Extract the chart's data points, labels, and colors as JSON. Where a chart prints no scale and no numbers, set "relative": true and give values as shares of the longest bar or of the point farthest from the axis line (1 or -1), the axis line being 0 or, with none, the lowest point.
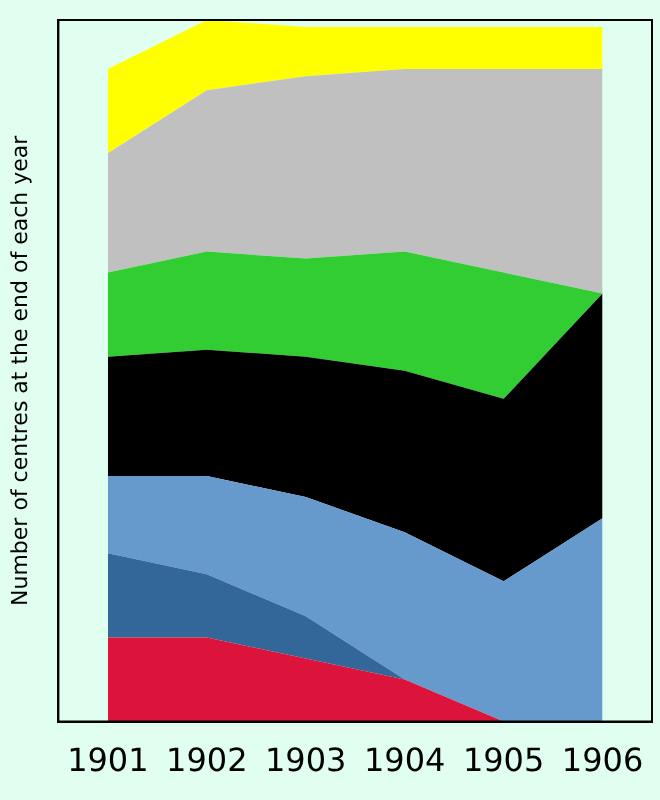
{
  "chart_data": {
    "type": "area",
    "stacked": true,
    "relative": true,
    "ylabel": "Number of centres at the end of each year",
    "categories": [
      "1901",
      "1902",
      "1903",
      "1904",
      "1905",
      "1906"
    ],
    "grid": false,
    "legend": false,
    "series": [
      {
        "color": "#dc143c",
        "values": [
          0.12,
          0.12,
          0.09,
          0.06,
          0,
          0
        ]
      },
      {
        "color": "#336699",
        "values": [
          0.12,
          0.09,
          0.06,
          0,
          0,
          0
        ]
      },
      {
        "color": "#6699cc",
        "values": [
          0.11,
          0.14,
          0.17,
          0.21,
          0.2,
          0.29
        ]
      },
      {
        "color": "#000000",
        "values": [
          0.17,
          0.18,
          0.2,
          0.23,
          0.26,
          0.32
        ]
      },
      {
        "color": "#32cd32",
        "values": [
          0.12,
          0.14,
          0.14,
          0.17,
          0.18,
          0
        ]
      },
      {
        "color": "#c0c0c0",
        "values": [
          0.17,
          0.23,
          0.26,
          0.26,
          0.29,
          0.32
        ]
      },
      {
        "color": "#ffff00",
        "values": [
          0.12,
          0.1,
          0.07,
          0.06,
          0.06,
          0.06
        ]
      }
    ]
  }
}
